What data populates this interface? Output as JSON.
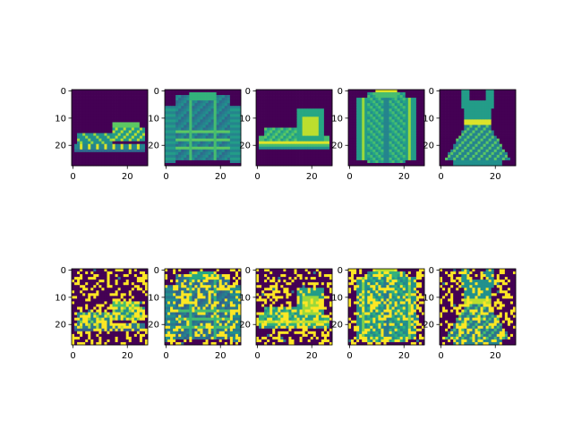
{
  "figure": {
    "rows": 2,
    "cols": 5,
    "background": "#ffffff"
  },
  "chart_data": {
    "type": "heatmap",
    "colormap": "viridis",
    "colors": {
      "low": "#440154",
      "mid": "#21918c",
      "high": "#fde725"
    },
    "image_size": [
      28,
      28
    ],
    "xlim": [
      -0.5,
      27.5
    ],
    "ylim": [
      27.5,
      -0.5
    ],
    "xticks": [
      "0",
      "20"
    ],
    "yticks": [
      "0",
      "10",
      "20"
    ],
    "panels": [
      {
        "row": "clean",
        "item": "sandal"
      },
      {
        "row": "clean",
        "item": "sweater"
      },
      {
        "row": "clean",
        "item": "ankle boot"
      },
      {
        "row": "clean",
        "item": "coat"
      },
      {
        "row": "clean",
        "item": "dress"
      },
      {
        "row": "noisy",
        "item": "sandal"
      },
      {
        "row": "noisy",
        "item": "sweater"
      },
      {
        "row": "noisy",
        "item": "ankle boot"
      },
      {
        "row": "noisy",
        "item": "coat"
      },
      {
        "row": "noisy",
        "item": "dress"
      }
    ]
  }
}
